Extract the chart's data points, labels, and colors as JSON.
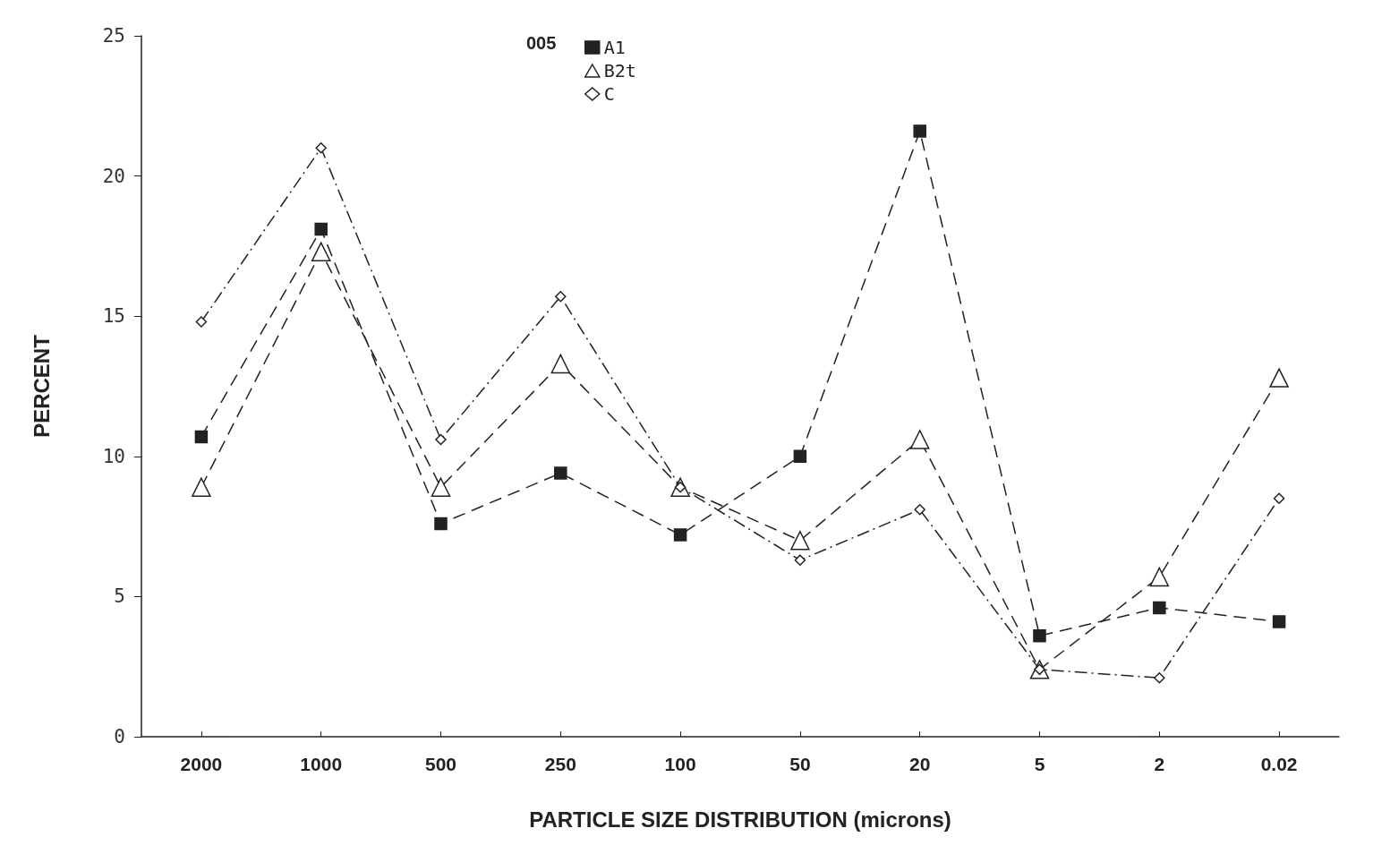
{
  "chart_data": {
    "type": "line",
    "xlabel": "PARTICLE SIZE DISTRIBUTION (microns)",
    "ylabel": "PERCENT",
    "legend_title": "005",
    "categories": [
      "2000",
      "1000",
      "500",
      "250",
      "100",
      "50",
      "20",
      "5",
      "2",
      "0.02"
    ],
    "series": [
      {
        "name": "A1",
        "color": "#222222",
        "marker": "square",
        "line_style": "dashed",
        "values": [
          10.7,
          18.1,
          7.6,
          9.4,
          7.2,
          10.0,
          21.6,
          3.6,
          4.6,
          4.1
        ]
      },
      {
        "name": "B2t",
        "color": "#222222",
        "marker": "triangle",
        "line_style": "dashed",
        "values": [
          8.9,
          17.3,
          8.9,
          13.3,
          8.9,
          7.0,
          10.6,
          2.4,
          5.7,
          12.8
        ]
      },
      {
        "name": "C",
        "color": "#222222",
        "marker": "diamond",
        "line_style": "dashdot",
        "values": [
          14.8,
          21.0,
          10.6,
          15.7,
          8.9,
          6.3,
          8.1,
          2.4,
          2.1,
          8.5
        ]
      }
    ],
    "ylim": [
      0,
      25
    ],
    "yticks": [
      0,
      5,
      10,
      15,
      20,
      25
    ],
    "grid": false,
    "legend": "top"
  }
}
